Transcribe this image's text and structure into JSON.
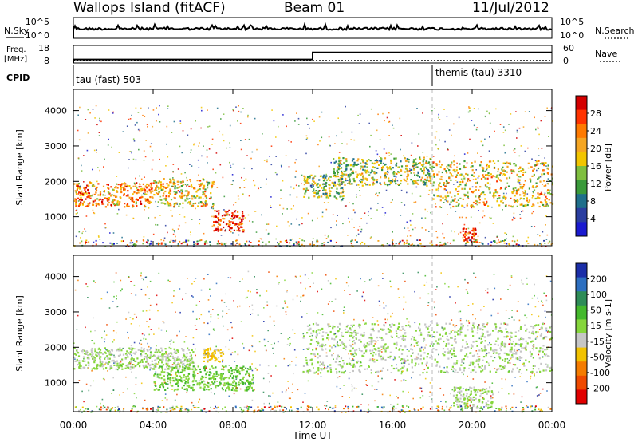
{
  "header": {
    "station": "Wallops Island (fitACF)",
    "beam": "Beam 01",
    "date": "11/Jul/2012"
  },
  "strip_labels": {
    "nsky": "N.Sky",
    "nsearch": "N.Search",
    "freq": "Freq.",
    "freq_unit": "[MHz]",
    "nave": "Nave",
    "cpid": "CPID",
    "left_ticks_top": [
      "10^5",
      "10^0"
    ],
    "right_ticks_top": [
      "10^5",
      "10^0"
    ],
    "left_ticks_freq": [
      "18",
      "8"
    ],
    "right_ticks_nave": [
      "60",
      "0"
    ]
  },
  "cpid": [
    {
      "name": "tau (fast) 503",
      "start": "00:00"
    },
    {
      "name": "themis (tau) 3310",
      "start": "18:00"
    }
  ],
  "power_bar": {
    "label": "Power [dB]",
    "ticks": [
      "28",
      "24",
      "20",
      "16",
      "12",
      "8",
      "4"
    ],
    "colors": [
      "#d40000",
      "#ff3300",
      "#ff7a00",
      "#f5a623",
      "#f2c500",
      "#7fbf3f",
      "#3a9a3a",
      "#1f6f8b",
      "#2a3ea0",
      "#1a1ad0"
    ]
  },
  "velocity_bar": {
    "label": "Velocity [m s-1]",
    "ticks": [
      "200",
      "100",
      "50",
      "15",
      "-15",
      "-50",
      "-100",
      "-200"
    ],
    "colors": [
      "#1b2ea8",
      "#2d6fc0",
      "#2e8c57",
      "#44b82c",
      "#86d63c",
      "#c6c6c6",
      "#f2c200",
      "#f57c00",
      "#ef4a00",
      "#e10000"
    ]
  },
  "chart_data": [
    {
      "type": "line",
      "title": "N.Sky / N.Search",
      "x": [
        "00:00",
        "04:00",
        "08:00",
        "12:00",
        "16:00",
        "20:00",
        "00:00"
      ],
      "series": [
        {
          "name": "N.Sky",
          "values": [
            10000.0,
            10000.0,
            10000.0,
            10000.0,
            10000.0,
            10000.0,
            10000.0
          ]
        }
      ],
      "ylim": [
        "10^0",
        "10^5"
      ],
      "yscale": "log"
    },
    {
      "type": "line",
      "title": "Freq. [MHz] / Nave",
      "x": [
        "00:00",
        "12:00",
        "12:00",
        "24:00"
      ],
      "series": [
        {
          "name": "Freq.",
          "values": [
            10,
            10,
            14,
            14
          ]
        }
      ],
      "ylim": [
        8,
        18
      ]
    },
    {
      "type": "heatmap",
      "title": "Power [dB]",
      "xlabel": "Time UT",
      "ylabel": "Slant Range [km]",
      "x_ticks": [
        "00:00",
        "04:00",
        "08:00",
        "12:00",
        "16:00",
        "20:00",
        "00:00"
      ],
      "y_ticks": [
        1000,
        2000,
        3000,
        4000
      ],
      "xlim": [
        0,
        24
      ],
      "ylim": [
        180,
        4600
      ],
      "colorbar": {
        "label": "Power [dB]",
        "range": [
          0,
          30
        ]
      },
      "features": [
        {
          "hours": [
            0,
            4
          ],
          "range_km": [
            1300,
            2000
          ],
          "value_db": 22
        },
        {
          "hours": [
            4,
            7
          ],
          "range_km": [
            1300,
            2100
          ],
          "value_db": 18
        },
        {
          "hours": [
            7,
            8.5
          ],
          "range_km": [
            600,
            1200
          ],
          "value_db": 28
        },
        {
          "hours": [
            11.5,
            13.5
          ],
          "range_km": [
            1500,
            2200
          ],
          "value_db": 12
        },
        {
          "hours": [
            13,
            18
          ],
          "range_km": [
            1900,
            2700
          ],
          "value_db": 14
        },
        {
          "hours": [
            18,
            24
          ],
          "range_km": [
            1300,
            2600
          ],
          "value_db": 18
        },
        {
          "hours": [
            19.5,
            20.2
          ],
          "range_km": [
            300,
            700
          ],
          "value_db": 28
        }
      ]
    },
    {
      "type": "heatmap",
      "title": "Velocity [m s-1]",
      "xlabel": "Time UT",
      "ylabel": "Slant Range [km]",
      "x_ticks": [
        "00:00",
        "04:00",
        "08:00",
        "12:00",
        "16:00",
        "20:00",
        "00:00"
      ],
      "y_ticks": [
        1000,
        2000,
        3000,
        4000
      ],
      "xlim": [
        0,
        24
      ],
      "ylim": [
        180,
        4600
      ],
      "colorbar": {
        "label": "Velocity [m s-1]",
        "range": [
          -200,
          200
        ]
      },
      "features": [
        {
          "hours": [
            0,
            6
          ],
          "range_km": [
            1400,
            2000
          ],
          "value_ms": 0
        },
        {
          "hours": [
            4,
            9
          ],
          "range_km": [
            800,
            1500
          ],
          "value_ms": 40
        },
        {
          "hours": [
            6.5,
            7.5
          ],
          "range_km": [
            1600,
            2000
          ],
          "value_ms": -60
        },
        {
          "hours": [
            11.5,
            24
          ],
          "range_km": [
            1300,
            2700
          ],
          "value_ms": 0
        },
        {
          "hours": [
            19,
            21
          ],
          "range_km": [
            300,
            900
          ],
          "value_ms": 0
        }
      ]
    }
  ],
  "axis": {
    "x_ticks": [
      "00:00",
      "04:00",
      "08:00",
      "12:00",
      "16:00",
      "20:00",
      "00:00"
    ],
    "x_label": "Time UT",
    "y_label": "Slant Range [km]",
    "y_ticks": [
      "1000",
      "2000",
      "3000",
      "4000"
    ]
  }
}
